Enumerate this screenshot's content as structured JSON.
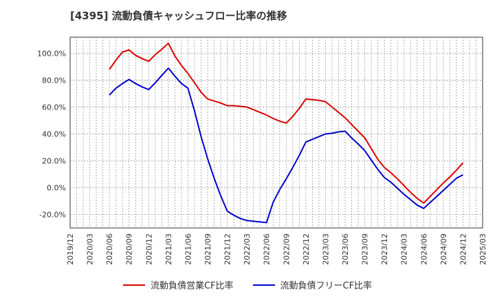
{
  "chart_data": {
    "type": "line",
    "title": "[4395]  流動負債キャッシュフロー比率の推移",
    "xlabel": "",
    "ylabel": "",
    "ylim": [
      -30,
      112
    ],
    "y_ticks": [
      "100.0%",
      "80.0%",
      "60.0%",
      "40.0%",
      "20.0%",
      "0.0%",
      "-20.0%"
    ],
    "y_tick_values": [
      100,
      80,
      60,
      40,
      20,
      0,
      -20
    ],
    "x_ticks": [
      "2019/12",
      "2020/03",
      "2020/06",
      "2020/09",
      "2020/12",
      "2021/03",
      "2021/06",
      "2021/09",
      "2021/12",
      "2022/03",
      "2022/06",
      "2022/09",
      "2022/12",
      "2023/03",
      "2023/06",
      "2023/09",
      "2023/12",
      "2024/03",
      "2024/06",
      "2024/09",
      "2024/12",
      "2025/03"
    ],
    "grid": true,
    "legend_position": "bottom",
    "x": [
      "2020/06",
      "2020/07",
      "2020/08",
      "2020/09",
      "2020/10",
      "2020/11",
      "2020/12",
      "2021/01",
      "2021/02",
      "2021/03",
      "2021/04",
      "2021/05",
      "2021/06",
      "2021/07",
      "2021/08",
      "2021/09",
      "2021/10",
      "2021/11",
      "2021/12",
      "2022/01",
      "2022/02",
      "2022/03",
      "2022/04",
      "2022/05",
      "2022/06",
      "2022/07",
      "2022/08",
      "2022/09",
      "2022/10",
      "2022/11",
      "2022/12",
      "2023/01",
      "2023/02",
      "2023/03",
      "2023/04",
      "2023/05",
      "2023/06",
      "2023/07",
      "2023/08",
      "2023/09",
      "2023/10",
      "2023/11",
      "2023/12",
      "2024/01",
      "2024/02",
      "2024/03",
      "2024/04",
      "2024/05",
      "2024/06",
      "2024/07",
      "2024/08",
      "2024/09",
      "2024/10",
      "2024/11",
      "2024/12"
    ],
    "series": [
      {
        "name": "流動負債営業CF比率",
        "color": "#dd0000",
        "values": [
          88,
          95,
          101,
          102.5,
          98.5,
          96,
          94,
          99,
          103,
          107.5,
          98,
          91,
          85,
          78,
          71,
          66,
          64.5,
          63,
          61,
          61,
          60.5,
          60,
          58,
          56,
          54,
          51.5,
          49.5,
          48,
          53,
          59,
          66,
          65.5,
          65,
          64,
          60,
          56,
          52,
          47,
          42,
          37,
          29,
          21,
          15,
          11,
          6.5,
          1.5,
          -3.5,
          -8,
          -11.5,
          -6.5,
          -1.5,
          3.5,
          8,
          13,
          18.5
        ]
      },
      {
        "name": "流動負債フリーCF比率",
        "color": "#0000cc",
        "values": [
          69,
          74,
          77.5,
          80.5,
          77.5,
          75,
          73,
          78,
          83.5,
          89,
          83,
          77.5,
          74,
          57,
          38,
          21.5,
          7,
          -6,
          -17.5,
          -20.5,
          -23,
          -24.5,
          -25,
          -25.5,
          -26,
          -11,
          -1.5,
          6.5,
          15,
          24,
          34,
          36,
          38,
          40,
          40.5,
          41.5,
          42,
          37,
          32.5,
          27.5,
          20.5,
          13.5,
          7.5,
          4,
          -0.5,
          -5,
          -9,
          -13,
          -15.5,
          -11,
          -6.5,
          -2,
          2.5,
          7,
          9.5
        ]
      }
    ]
  }
}
